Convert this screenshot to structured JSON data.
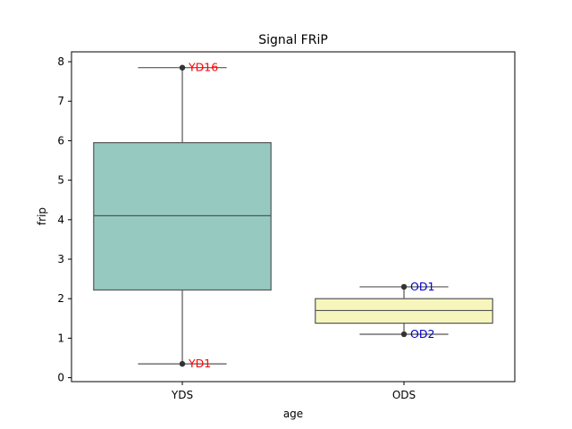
{
  "chart_data": {
    "type": "box",
    "title": "Signal FRiP",
    "xlabel": "age",
    "ylabel": "frip",
    "ylim": [
      -0.1,
      8.25
    ],
    "yticks": [
      0,
      1,
      2,
      3,
      4,
      5,
      6,
      7,
      8
    ],
    "ytick_labels": [
      "0",
      "1",
      "2",
      "3",
      "4",
      "5",
      "6",
      "7",
      "8"
    ],
    "categories": [
      "YDS",
      "ODS"
    ],
    "boxes": [
      {
        "category": "YDS",
        "min": 0.35,
        "q1": 2.22,
        "median": 4.1,
        "q3": 5.95,
        "max": 7.85,
        "color": "#96cac1",
        "points": [
          {
            "label": "YD16",
            "value": 7.85
          },
          {
            "label": "YD1",
            "value": 0.35
          }
        ]
      },
      {
        "category": "ODS",
        "min": 1.1,
        "q1": 1.38,
        "median": 1.7,
        "q3": 2.0,
        "max": 2.3,
        "color": "#f6f6bc",
        "points": [
          {
            "label": "OD1",
            "value": 2.3
          },
          {
            "label": "OD2",
            "value": 1.1
          }
        ]
      }
    ],
    "annotation_colors": {
      "YDS": "#ff0000",
      "ODS": "#0000cc"
    },
    "line_color": "#555555",
    "grid": false,
    "legend": "none"
  }
}
